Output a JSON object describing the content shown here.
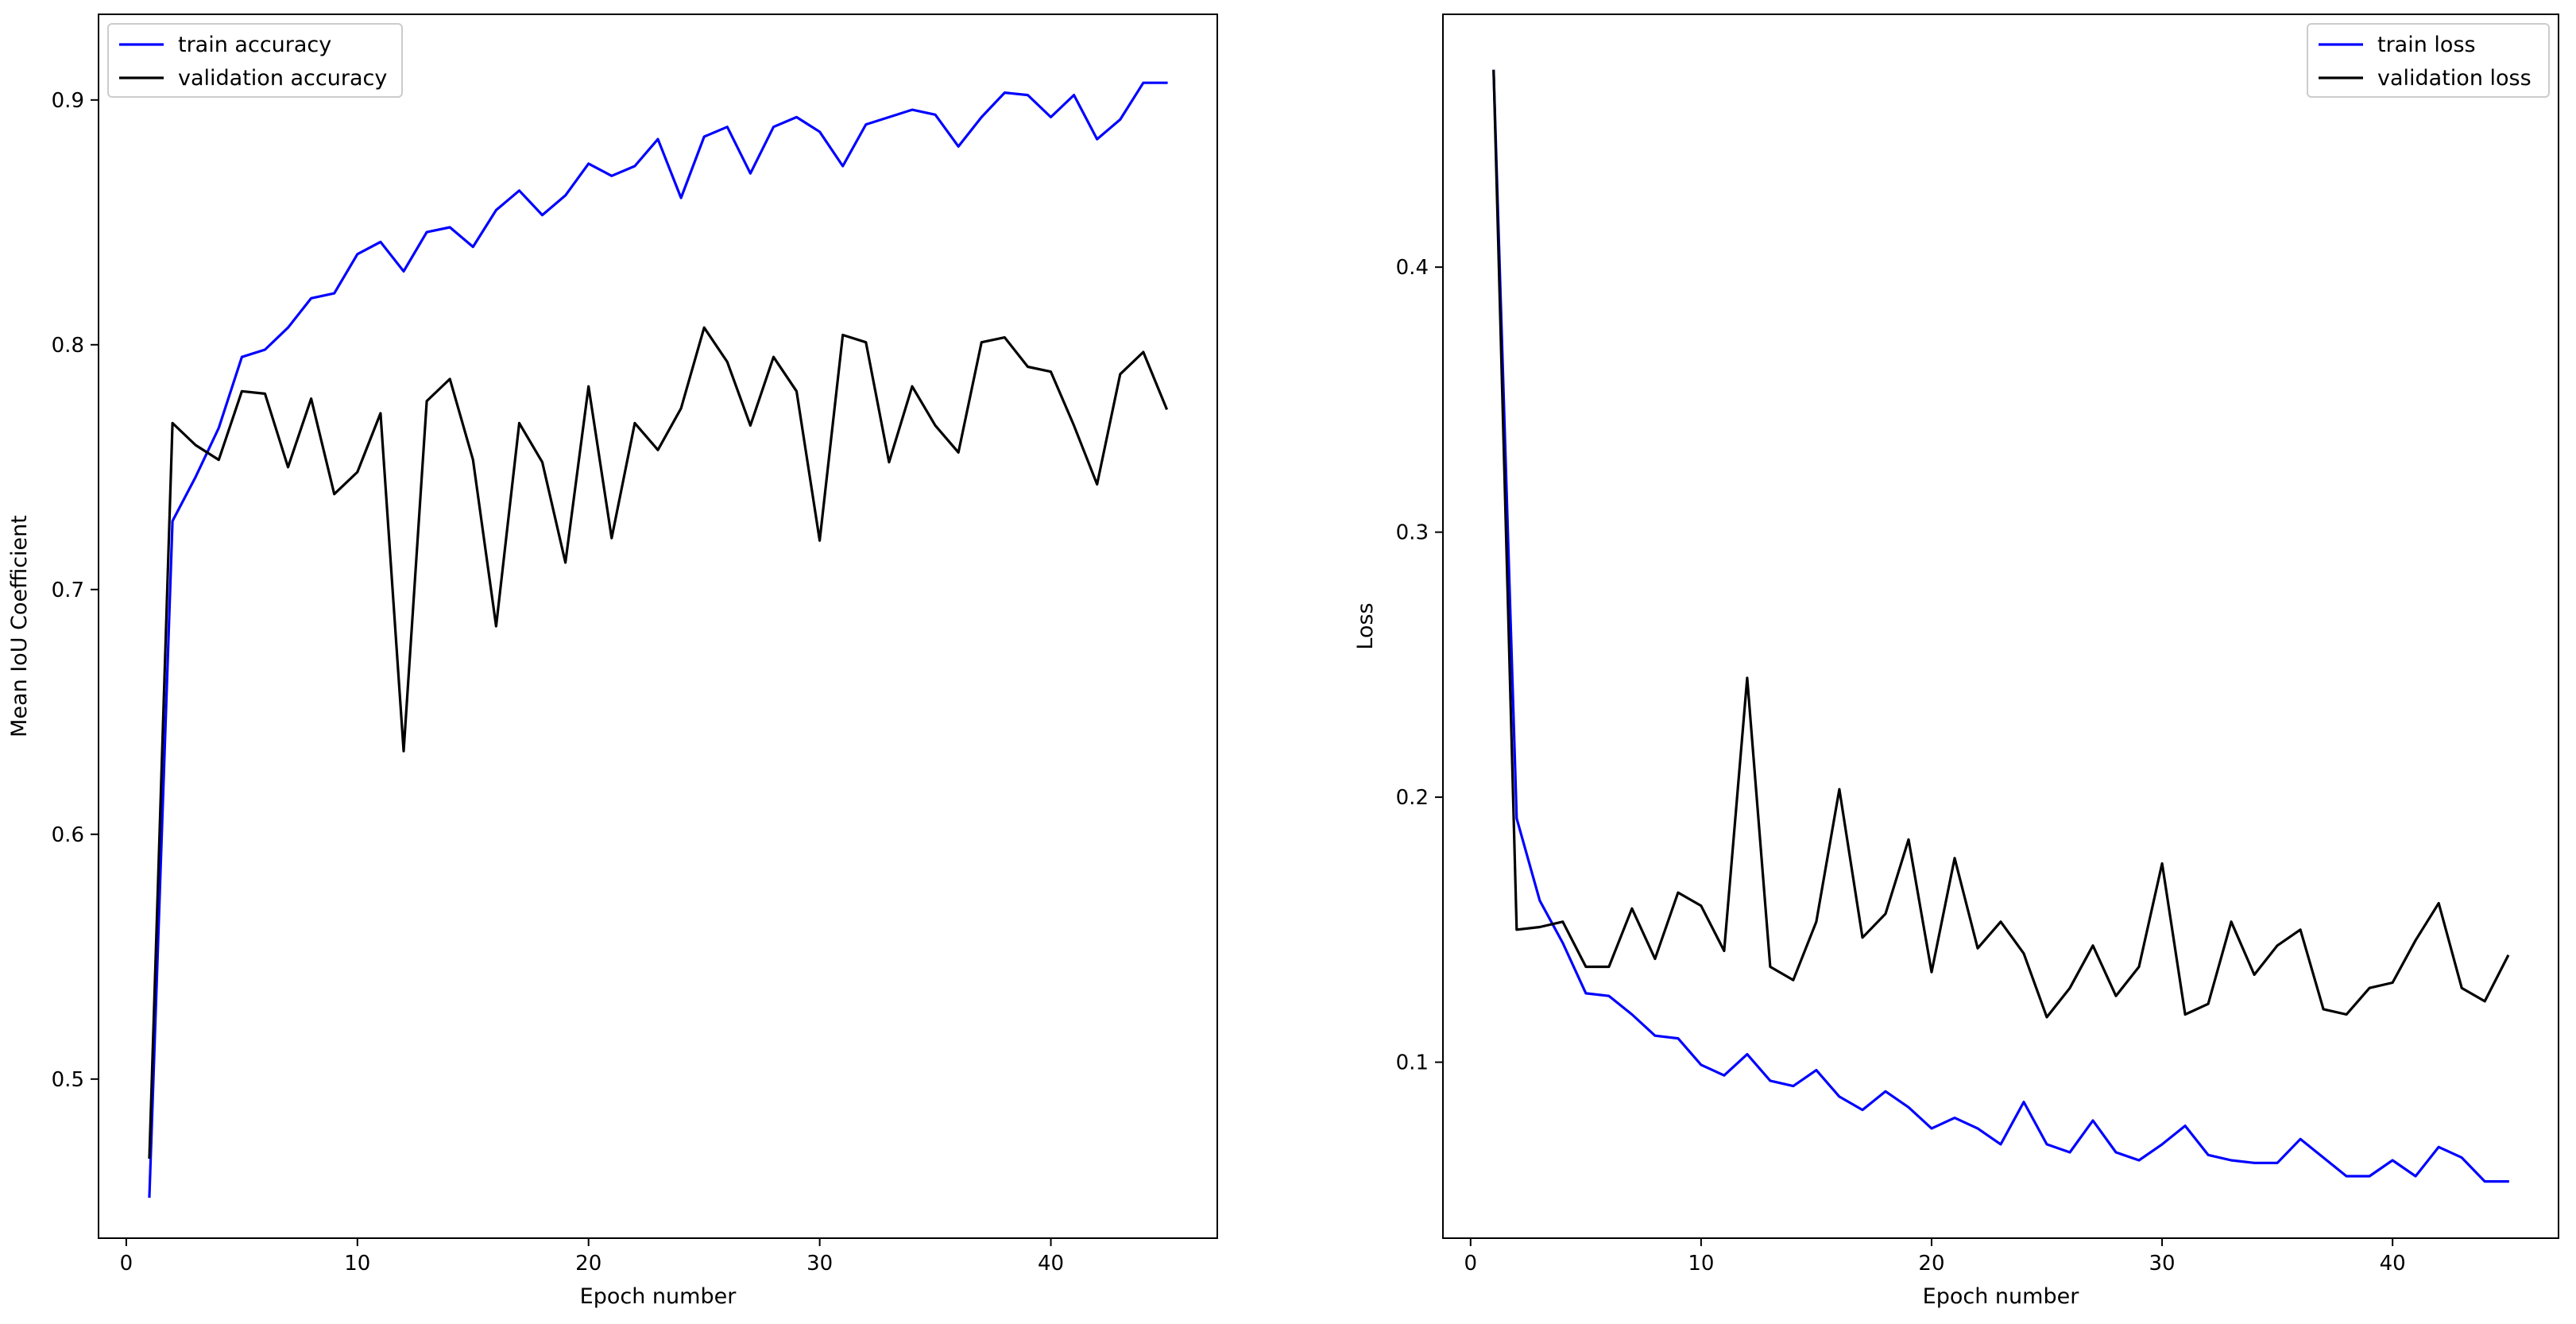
{
  "chart_data": [
    {
      "type": "line",
      "title": "",
      "xlabel": "Epoch number",
      "ylabel": "Mean IoU Coefficient",
      "xlim": [
        -1.2,
        47.2
      ],
      "ylim": [
        0.435,
        0.935
      ],
      "xticks": [
        0,
        10,
        20,
        30,
        40
      ],
      "yticks": [
        0.5,
        0.6,
        0.7,
        0.8,
        0.9
      ],
      "grid": false,
      "legend_position": "top-left",
      "x": [
        1,
        2,
        3,
        4,
        5,
        6,
        7,
        8,
        9,
        10,
        11,
        12,
        13,
        14,
        15,
        16,
        17,
        18,
        19,
        20,
        21,
        22,
        23,
        24,
        25,
        26,
        27,
        28,
        29,
        30,
        31,
        32,
        33,
        34,
        35,
        36,
        37,
        38,
        39,
        40,
        41,
        42,
        43,
        44,
        45
      ],
      "series": [
        {
          "name": "train accuracy",
          "color": "#0000ff",
          "values": [
            0.452,
            0.728,
            0.746,
            0.766,
            0.795,
            0.798,
            0.807,
            0.819,
            0.821,
            0.837,
            0.842,
            0.83,
            0.846,
            0.848,
            0.84,
            0.855,
            0.863,
            0.853,
            0.861,
            0.874,
            0.869,
            0.873,
            0.884,
            0.86,
            0.885,
            0.889,
            0.87,
            0.889,
            0.893,
            0.887,
            0.873,
            0.89,
            0.893,
            0.896,
            0.894,
            0.881,
            0.893,
            0.903,
            0.902,
            0.893,
            0.902,
            0.884,
            0.892,
            0.907,
            0.907
          ]
        },
        {
          "name": "validation accuracy",
          "color": "#000000",
          "values": [
            0.468,
            0.768,
            0.759,
            0.753,
            0.781,
            0.78,
            0.75,
            0.778,
            0.739,
            0.748,
            0.772,
            0.634,
            0.777,
            0.786,
            0.753,
            0.685,
            0.768,
            0.752,
            0.711,
            0.783,
            0.721,
            0.768,
            0.757,
            0.774,
            0.807,
            0.793,
            0.767,
            0.795,
            0.781,
            0.72,
            0.804,
            0.801,
            0.752,
            0.783,
            0.767,
            0.756,
            0.801,
            0.803,
            0.791,
            0.789,
            0.767,
            0.743,
            0.788,
            0.797,
            0.774
          ]
        }
      ]
    },
    {
      "type": "line",
      "title": "",
      "xlabel": "Epoch number",
      "ylabel": "Loss",
      "xlim": [
        -1.2,
        47.2
      ],
      "ylim": [
        0.0336,
        0.4954
      ],
      "xticks": [
        0,
        10,
        20,
        30,
        40
      ],
      "yticks": [
        0.1,
        0.2,
        0.3,
        0.4
      ],
      "grid": false,
      "legend_position": "top-right",
      "x": [
        1,
        2,
        3,
        4,
        5,
        6,
        7,
        8,
        9,
        10,
        11,
        12,
        13,
        14,
        15,
        16,
        17,
        18,
        19,
        20,
        21,
        22,
        23,
        24,
        25,
        26,
        27,
        28,
        29,
        30,
        31,
        32,
        33,
        34,
        35,
        36,
        37,
        38,
        39,
        40,
        41,
        42,
        43,
        44,
        45
      ],
      "series": [
        {
          "name": "train loss",
          "color": "#0000ff",
          "values": [
            0.474,
            0.192,
            0.161,
            0.145,
            0.126,
            0.125,
            0.118,
            0.11,
            0.109,
            0.099,
            0.095,
            0.103,
            0.093,
            0.091,
            0.097,
            0.087,
            0.082,
            0.089,
            0.083,
            0.075,
            0.079,
            0.075,
            0.069,
            0.085,
            0.069,
            0.066,
            0.078,
            0.066,
            0.063,
            0.069,
            0.076,
            0.065,
            0.063,
            0.062,
            0.062,
            0.071,
            0.064,
            0.057,
            0.057,
            0.063,
            0.057,
            0.068,
            0.064,
            0.055,
            0.055
          ]
        },
        {
          "name": "validation loss",
          "color": "#000000",
          "values": [
            0.474,
            0.15,
            0.151,
            0.153,
            0.136,
            0.136,
            0.158,
            0.139,
            0.164,
            0.159,
            0.142,
            0.245,
            0.136,
            0.131,
            0.153,
            0.203,
            0.147,
            0.156,
            0.184,
            0.134,
            0.177,
            0.143,
            0.153,
            0.141,
            0.117,
            0.128,
            0.144,
            0.125,
            0.136,
            0.175,
            0.118,
            0.122,
            0.153,
            0.133,
            0.144,
            0.15,
            0.12,
            0.118,
            0.128,
            0.13,
            0.146,
            0.16,
            0.128,
            0.123,
            0.14
          ]
        }
      ]
    }
  ]
}
